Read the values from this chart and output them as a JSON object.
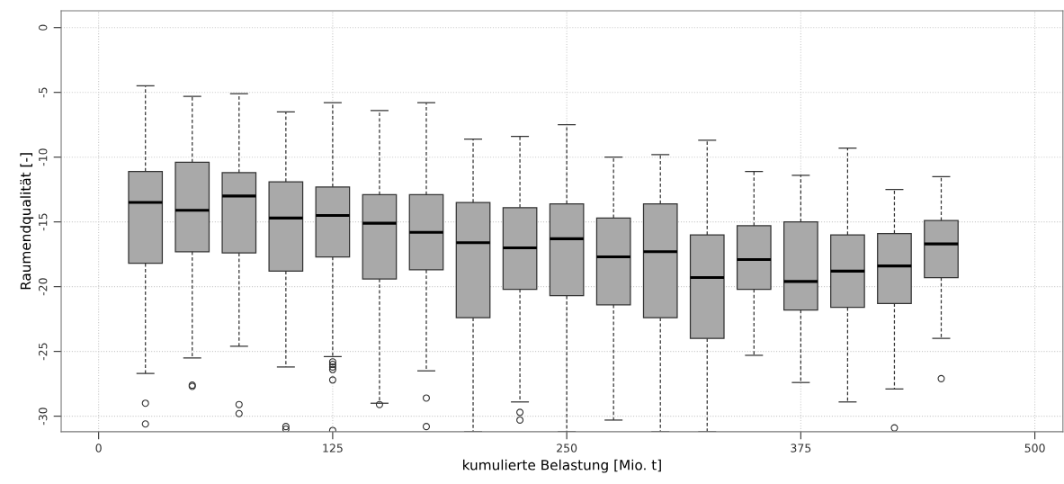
{
  "chart_data": {
    "type": "box",
    "xlabel": "kumulierte Belastung [Mio. t]",
    "ylabel": "Raumendqualität [-]",
    "x": [
      25,
      50,
      75,
      100,
      125,
      150,
      175,
      200,
      225,
      250,
      275,
      300,
      325,
      350,
      375,
      400,
      425,
      450
    ],
    "xlim": [
      -20,
      515
    ],
    "xticks": [
      0,
      125,
      250,
      375,
      500
    ],
    "ylim": [
      -31.2,
      1.3
    ],
    "yticks": [
      -30,
      -25,
      -20,
      -15,
      -10,
      -5,
      0
    ],
    "grid": true,
    "color": "#a9a9a9",
    "boxes": [
      {
        "low": -26.7,
        "q1": -18.2,
        "median": -13.5,
        "q3": -11.1,
        "high": -4.5,
        "outliers": [
          -29.0,
          -30.6
        ]
      },
      {
        "low": -25.5,
        "q1": -17.3,
        "median": -14.1,
        "q3": -10.4,
        "high": -5.3,
        "outliers": [
          -27.6,
          -27.7
        ]
      },
      {
        "low": -24.6,
        "q1": -17.4,
        "median": -13.0,
        "q3": -11.2,
        "high": -5.1,
        "outliers": [
          -29.1,
          -29.8
        ]
      },
      {
        "low": -26.2,
        "q1": -18.8,
        "median": -14.7,
        "q3": -11.9,
        "high": -6.5,
        "outliers": [
          -30.8,
          -31.0
        ]
      },
      {
        "low": -25.4,
        "q1": -17.7,
        "median": -14.5,
        "q3": -12.3,
        "high": -5.8,
        "outliers": [
          -25.8,
          -26.0,
          -26.2,
          -26.4,
          -27.2,
          -31.1
        ]
      },
      {
        "low": -29.0,
        "q1": -19.4,
        "median": -15.1,
        "q3": -12.9,
        "high": -6.4,
        "outliers": [
          -29.1
        ]
      },
      {
        "low": -26.5,
        "q1": -18.7,
        "median": -15.8,
        "q3": -12.9,
        "high": -5.8,
        "outliers": [
          -28.6,
          -30.8
        ]
      },
      {
        "low": -31.2,
        "q1": -22.4,
        "median": -16.6,
        "q3": -13.5,
        "high": -8.6
      },
      {
        "low": -28.9,
        "q1": -20.2,
        "median": -17.0,
        "q3": -13.9,
        "high": -8.4,
        "outliers": [
          -29.7,
          -30.3
        ]
      },
      {
        "low": -31.2,
        "q1": -20.7,
        "median": -16.3,
        "q3": -13.6,
        "high": -7.5
      },
      {
        "low": -30.3,
        "q1": -21.4,
        "median": -17.7,
        "q3": -14.7,
        "high": -10.0
      },
      {
        "low": -31.2,
        "q1": -22.4,
        "median": -17.3,
        "q3": -13.6,
        "high": -9.8
      },
      {
        "low": -31.2,
        "q1": -24.0,
        "median": -19.3,
        "q3": -16.0,
        "high": -8.7
      },
      {
        "low": -25.3,
        "q1": -20.2,
        "median": -17.9,
        "q3": -15.3,
        "high": -11.1
      },
      {
        "low": -27.4,
        "q1": -21.8,
        "median": -19.6,
        "q3": -15.0,
        "high": -11.4
      },
      {
        "low": -28.9,
        "q1": -21.6,
        "median": -18.8,
        "q3": -16.0,
        "high": -9.3
      },
      {
        "low": -27.9,
        "q1": -21.3,
        "median": -18.4,
        "q3": -15.9,
        "high": -12.5,
        "outliers": [
          -30.9
        ]
      },
      {
        "low": -24.0,
        "q1": -19.3,
        "median": -16.7,
        "q3": -14.9,
        "high": -11.5,
        "outliers": [
          -27.1
        ]
      }
    ]
  }
}
